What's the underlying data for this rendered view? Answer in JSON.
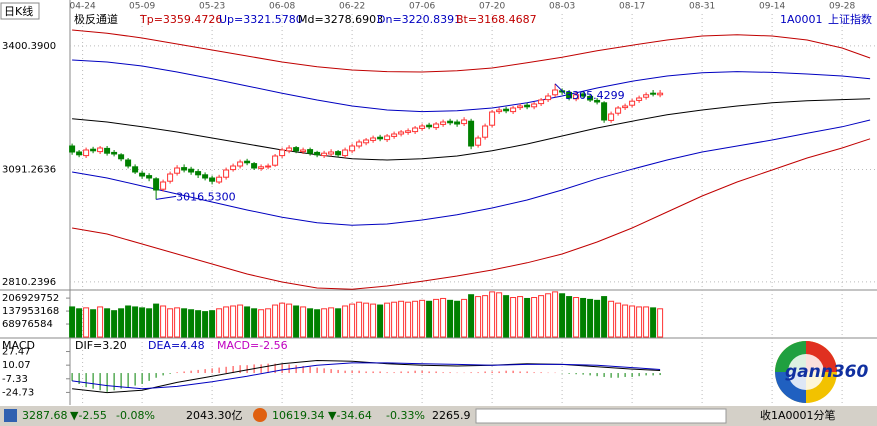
{
  "chart_data": [
    {
      "type": "candlestick",
      "title": "日K线",
      "indicator": "极反通道",
      "params": [
        "Tp=3359.4726",
        "Up=3321.5780",
        "Md=3278.6903",
        "Dn=3220.8391",
        "Bt=3168.4687"
      ],
      "symbol": "1A0001",
      "name": "上证指数",
      "open": [
        3150,
        3135,
        3126,
        3142,
        3136,
        3144,
        3134,
        3128,
        3115,
        3098,
        3082,
        3076,
        3068,
        3042,
        3062,
        3082,
        3096,
        3092,
        3086,
        3078,
        3070,
        3060,
        3072,
        3091,
        3100,
        3112,
        3106,
        3094,
        3098,
        3102,
        3126,
        3138,
        3146,
        3136,
        3141,
        3134,
        3126,
        3130,
        3136,
        3126,
        3138,
        3150,
        3158,
        3164,
        3172,
        3166,
        3174,
        3180,
        3184,
        3186,
        3194,
        3202,
        3196,
        3204,
        3212,
        3210,
        3206,
        3212,
        3152,
        3172,
        3202,
        3236,
        3242,
        3236,
        3246,
        3252,
        3248,
        3256,
        3266,
        3278,
        3288,
        3284,
        3268,
        3280,
        3274,
        3264,
        3258,
        3214,
        3232,
        3246,
        3252,
        3264,
        3272,
        3282,
        3278
      ],
      "high": [
        3156,
        3140,
        3146,
        3148,
        3150,
        3150,
        3140,
        3132,
        3120,
        3104,
        3088,
        3082,
        3072,
        3066,
        3086,
        3102,
        3104,
        3098,
        3092,
        3084,
        3076,
        3078,
        3096,
        3106,
        3116,
        3118,
        3110,
        3104,
        3106,
        3130,
        3146,
        3152,
        3150,
        3146,
        3146,
        3138,
        3138,
        3142,
        3140,
        3146,
        3156,
        3166,
        3170,
        3176,
        3178,
        3180,
        3186,
        3190,
        3194,
        3200,
        3206,
        3208,
        3210,
        3216,
        3218,
        3216,
        3222,
        3218,
        3176,
        3206,
        3240,
        3246,
        3248,
        3250,
        3256,
        3258,
        3260,
        3270,
        3282,
        3305.4299,
        3294,
        3290,
        3284,
        3286,
        3280,
        3270,
        3262,
        3236,
        3250,
        3256,
        3268,
        3276,
        3284,
        3290,
        3290
      ],
      "low": [
        3128,
        3122,
        3120,
        3132,
        3130,
        3126,
        3124,
        3112,
        3094,
        3080,
        3068,
        3062,
        3016.53,
        3036,
        3056,
        3076,
        3084,
        3078,
        3070,
        3064,
        3054,
        3055,
        3066,
        3086,
        3094,
        3102,
        3090,
        3088,
        3092,
        3098,
        3120,
        3132,
        3132,
        3130,
        3126,
        3122,
        3120,
        3124,
        3122,
        3120,
        3132,
        3144,
        3152,
        3158,
        3162,
        3160,
        3168,
        3174,
        3178,
        3180,
        3188,
        3192,
        3190,
        3198,
        3202,
        3198,
        3200,
        3142,
        3146,
        3166,
        3196,
        3230,
        3232,
        3230,
        3240,
        3242,
        3242,
        3250,
        3260,
        3272,
        3278,
        3264,
        3262,
        3270,
        3260,
        3254,
        3208,
        3208,
        3226,
        3240,
        3246,
        3258,
        3266,
        3274,
        3272
      ],
      "close": [
        3135,
        3128,
        3140,
        3138,
        3145,
        3132,
        3130,
        3118,
        3100,
        3085,
        3075,
        3070,
        3040,
        3060,
        3080,
        3095,
        3090,
        3085,
        3078,
        3070,
        3062,
        3072,
        3090,
        3100,
        3110,
        3108,
        3095,
        3098,
        3100,
        3125,
        3140,
        3145,
        3138,
        3140,
        3132,
        3128,
        3132,
        3135,
        3128,
        3140,
        3150,
        3160,
        3165,
        3170,
        3168,
        3175,
        3180,
        3185,
        3188,
        3195,
        3200,
        3198,
        3205,
        3210,
        3208,
        3205,
        3215,
        3150,
        3170,
        3200,
        3235,
        3240,
        3238,
        3245,
        3250,
        3248,
        3255,
        3265,
        3275,
        3290,
        3285,
        3270,
        3278,
        3275,
        3265,
        3260,
        3215,
        3230,
        3245,
        3250,
        3262,
        3270,
        3278,
        3280,
        3282
      ],
      "up_color": "#ff3232",
      "down_color": "#008000",
      "xlim": [
        -0.3,
        114.7
      ],
      "xticks": [
        {
          "value": 1.5,
          "label": "04-24"
        },
        {
          "value": 10,
          "label": "05-09"
        },
        {
          "value": 20,
          "label": "05-23"
        },
        {
          "value": 30,
          "label": "06-08"
        },
        {
          "value": 40,
          "label": "06-22"
        },
        {
          "value": 50,
          "label": "07-06"
        },
        {
          "value": 60,
          "label": "07-20"
        },
        {
          "value": 70,
          "label": "08-03"
        },
        {
          "value": 80,
          "label": "08-17"
        },
        {
          "value": 90,
          "label": "08-31"
        },
        {
          "value": 100,
          "label": "09-14"
        },
        {
          "value": 110,
          "label": "09-28"
        }
      ],
      "ylim": [
        2790,
        3480
      ],
      "yticks": [
        {
          "value": 3400.39,
          "label": "3400.3900"
        },
        3091.2636,
        2810.2396
      ],
      "grid": true,
      "band_x": [
        0,
        5,
        10,
        15,
        20,
        25,
        30,
        35,
        40,
        45,
        50,
        55,
        60,
        65,
        70,
        75,
        80,
        85,
        90,
        95,
        100,
        105,
        110,
        114
      ],
      "bands": [
        {
          "color": "#c00000",
          "values": [
            3440,
            3432,
            3420,
            3405,
            3390,
            3375,
            3360,
            3348,
            3340,
            3336,
            3335,
            3338,
            3345,
            3358,
            3372,
            3388,
            3402,
            3415,
            3425,
            3428,
            3425,
            3415,
            3395,
            3370
          ]
        },
        {
          "color": "#0000c0",
          "values": [
            3365,
            3360,
            3350,
            3335,
            3318,
            3300,
            3282,
            3265,
            3250,
            3240,
            3236,
            3238,
            3245,
            3258,
            3275,
            3295,
            3312,
            3325,
            3333,
            3336,
            3334,
            3330,
            3325,
            3318
          ]
        },
        {
          "color": "#000000",
          "values": [
            3218,
            3210,
            3198,
            3185,
            3170,
            3155,
            3140,
            3128,
            3118,
            3115,
            3118,
            3125,
            3138,
            3155,
            3175,
            3195,
            3212,
            3228,
            3240,
            3250,
            3258,
            3263,
            3266,
            3268
          ]
        },
        {
          "color": "#0000c0",
          "values": [
            3085,
            3070,
            3050,
            3030,
            3010,
            2990,
            2972,
            2958,
            2952,
            2955,
            2965,
            2978,
            2995,
            3015,
            3040,
            3068,
            3092,
            3115,
            3135,
            3150,
            3165,
            3182,
            3198,
            3215
          ]
        },
        {
          "color": "#c00000",
          "values": [
            2945,
            2930,
            2905,
            2880,
            2855,
            2830,
            2810,
            2795,
            2792,
            2800,
            2812,
            2825,
            2840,
            2858,
            2880,
            2910,
            2945,
            2985,
            3025,
            3060,
            3090,
            3120,
            3145,
            3168
          ]
        }
      ],
      "annotations": [
        "3305.4299",
        "3016.5300"
      ]
    },
    {
      "type": "bar",
      "values": [
        160000000,
        150000000,
        155000000,
        145000000,
        160000000,
        150000000,
        140000000,
        150000000,
        165000000,
        160000000,
        155000000,
        150000000,
        175000000,
        165000000,
        150000000,
        155000000,
        150000000,
        145000000,
        140000000,
        135000000,
        140000000,
        150000000,
        160000000,
        165000000,
        170000000,
        160000000,
        150000000,
        145000000,
        150000000,
        170000000,
        180000000,
        175000000,
        165000000,
        160000000,
        150000000,
        145000000,
        150000000,
        155000000,
        150000000,
        165000000,
        175000000,
        185000000,
        180000000,
        175000000,
        170000000,
        180000000,
        185000000,
        190000000,
        185000000,
        190000000,
        195000000,
        190000000,
        200000000,
        205000000,
        195000000,
        190000000,
        200000000,
        225000000,
        215000000,
        220000000,
        240000000,
        235000000,
        220000000,
        210000000,
        215000000,
        205000000,
        210000000,
        220000000,
        230000000,
        240000000,
        230000000,
        215000000,
        210000000,
        205000000,
        200000000,
        195000000,
        215000000,
        190000000,
        180000000,
        170000000,
        165000000,
        160000000,
        160000000,
        155000000,
        150000000
      ],
      "ylim": [
        0,
        250000000
      ],
      "yticks": [
        206929752,
        137953168,
        68976584
      ]
    },
    {
      "type": "macd",
      "title": "MACD",
      "labels": [
        "DIF=3.20",
        "DEA=4.48",
        "MACD=-2.56"
      ],
      "x": [
        0,
        5,
        10,
        15,
        20,
        25,
        30,
        35,
        40,
        45,
        50,
        55,
        60,
        65,
        70,
        75,
        80,
        84
      ],
      "series": [
        {
          "color": "#000000",
          "values": [
            -20,
            -25,
            -22,
            -12,
            -4,
            4,
            12,
            16,
            15,
            12,
            10,
            9,
            10,
            12,
            11,
            8,
            5,
            3.2
          ]
        },
        {
          "color": "#0000c0",
          "values": [
            -10,
            -16,
            -20,
            -17,
            -11,
            -4,
            4,
            10,
            13,
            13,
            12,
            11,
            10,
            11,
            11,
            10,
            7,
            4.48
          ]
        }
      ],
      "histogram": [
        -10,
        -14,
        -18,
        -20,
        -22,
        -24,
        -22,
        -20,
        -18,
        -16,
        -14,
        -10,
        -6,
        -3,
        -1,
        1,
        2,
        3,
        4,
        5,
        6,
        7,
        8,
        9,
        10,
        10,
        11,
        11,
        12,
        12,
        12,
        11,
        10,
        9,
        8,
        7,
        6,
        5,
        4,
        3,
        3,
        3,
        2,
        2,
        2,
        1,
        1,
        2,
        2,
        3,
        3,
        2,
        2,
        1,
        1,
        0.5,
        0.5,
        1,
        1,
        2,
        2,
        2,
        3,
        3,
        2,
        2,
        1,
        1,
        0.5,
        0.5,
        -0.5,
        -1,
        -1.5,
        -2,
        -3,
        -4,
        -5,
        -6,
        -6,
        -5,
        -5,
        -4,
        -3,
        -3,
        -2.56
      ],
      "up_color": "#ff3232",
      "down_color": "#008000",
      "ylim": [
        -40.8,
        42.2
      ],
      "yticks": [
        27.47,
        10.07,
        -7.33,
        -24.73
      ]
    }
  ],
  "logo": "gann360",
  "status_bar": [
    "3287.68",
    "▼-2.55",
    "-0.08%",
    "2043.30亿",
    "10619.34",
    "▼-34.64",
    "-0.33%",
    "2265.9",
    "收1A0001分笔"
  ]
}
